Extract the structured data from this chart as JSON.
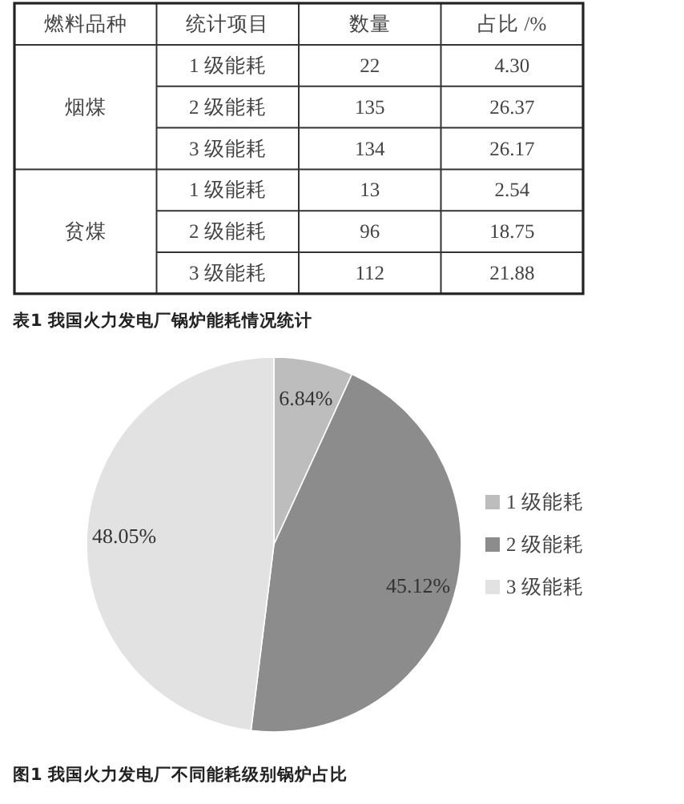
{
  "chart_data": [
    {
      "type": "heatmap",
      "y2label": "燃料品种",
      "ylabel": "统计项目",
      "categories": [
        "数量",
        "占比 /%"
      ],
      "y_categories": [
        "1 级能耗",
        "2 级能耗",
        "3 级能耗",
        "1 级能耗",
        "2 级能耗",
        "3 级能耗"
      ],
      "y2_categories": [
        null,
        "烟煤",
        null,
        null,
        "贫煤",
        null
      ],
      "cells": [
        [
          22,
          4.3
        ],
        [
          135,
          26.37
        ],
        [
          134,
          26.17
        ],
        [
          13,
          2.54
        ],
        [
          96,
          18.75
        ],
        [
          112,
          21.88
        ]
      ],
      "cell_labels": [
        [
          "22",
          "4.30"
        ],
        [
          "135",
          "26.37"
        ],
        [
          "134",
          "26.17"
        ],
        [
          "13",
          "2.54"
        ],
        [
          "96",
          "18.75"
        ],
        [
          "112",
          "21.88"
        ]
      ],
      "annotations": [
        "表1 我国火力发电厂锅炉能耗情况统计"
      ]
    },
    {
      "type": "pie",
      "categories": [
        "1 级能耗",
        "2 级能耗",
        "3 级能耗"
      ],
      "values": [
        6.84,
        45.12,
        48.05
      ],
      "colors": [
        "#bdbdbd",
        "#8c8c8c",
        "#e2e2e2"
      ],
      "value_labels": [
        "6.84%",
        "45.12%",
        "48.05%"
      ],
      "legend": "right",
      "annotations": [
        "图1 我国火力发电厂不同能耗级别锅炉占比"
      ]
    }
  ]
}
